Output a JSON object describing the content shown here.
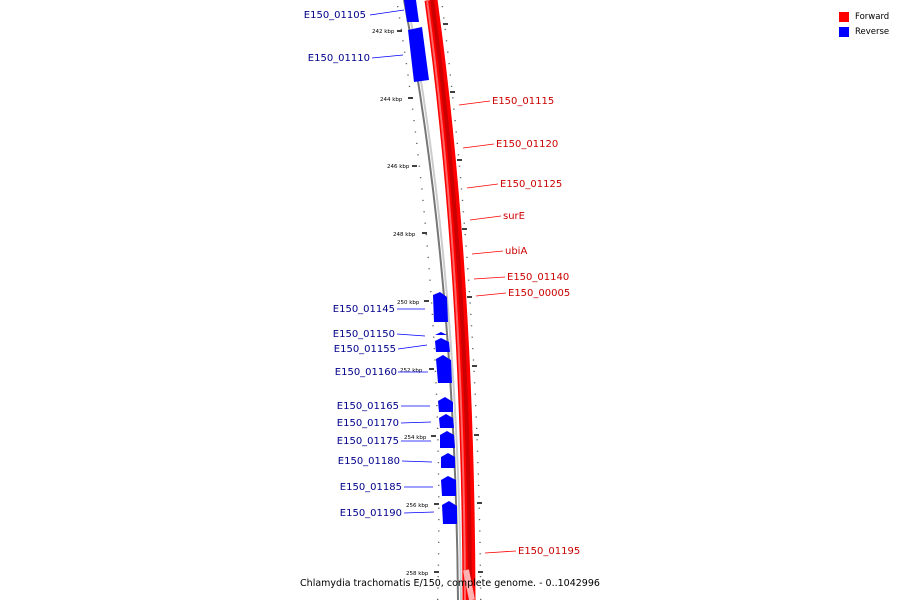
{
  "caption": "Chlamydia trachomatis E/150, complete genome. - 0..1042996",
  "legend": [
    {
      "label": "Forward",
      "color": "#ff0000"
    },
    {
      "label": "Reverse",
      "color": "#0000ff"
    }
  ],
  "scale_labels": [
    "242 kbp",
    "244 kbp",
    "246 kbp",
    "248 kbp",
    "250 kbp",
    "252 kbp",
    "254 kbp",
    "256 kbp",
    "258 kbp"
  ],
  "forward_features": [
    "E150_01115",
    "E150_01120",
    "E150_01125",
    "surE",
    "ubiA",
    "E150_01140",
    "E150_00005",
    "E150_01195"
  ],
  "reverse_features": [
    "E150_01105",
    "E150_01110",
    "E150_01145",
    "E150_01150",
    "E150_01155",
    "E150_01160",
    "E150_01165",
    "E150_01170",
    "E150_01175",
    "E150_01180",
    "E150_01185",
    "E150_01190"
  ],
  "colors": {
    "forward": "#ff0000",
    "reverse": "#0000ff",
    "forward_label": "#cc0000",
    "reverse_label": "#00008b"
  }
}
